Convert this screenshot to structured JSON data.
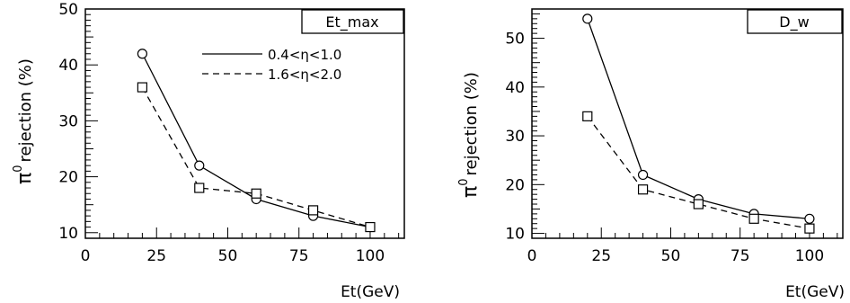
{
  "chart_data": [
    {
      "type": "line",
      "box_label": "Et_max",
      "xlabel": "Et(GeV)",
      "ylabel": "π⁰ rejection (%)",
      "ylabel_main": "rejection (%)",
      "xlim": [
        0,
        112
      ],
      "ylim": [
        9,
        50
      ],
      "xticks": [
        0,
        25,
        50,
        75,
        100
      ],
      "yticks": [
        10,
        20,
        30,
        40,
        50
      ],
      "legend": "top-right",
      "series": [
        {
          "name": "0.4<η<1.0",
          "style": "solid",
          "marker": "circle",
          "x": [
            20,
            40,
            60,
            80,
            100
          ],
          "y": [
            42,
            22,
            16,
            13,
            11
          ]
        },
        {
          "name": "1.6<η<2.0",
          "style": "dashed",
          "marker": "square",
          "x": [
            20,
            40,
            60,
            80,
            100
          ],
          "y": [
            36,
            18,
            17,
            14,
            11
          ]
        }
      ]
    },
    {
      "type": "line",
      "box_label": "D_w",
      "xlabel": "Et(GeV)",
      "ylabel": "π⁰ rejection (%)",
      "ylabel_main": "rejection (%)",
      "xlim": [
        0,
        112
      ],
      "ylim": [
        9,
        56
      ],
      "xticks": [
        0,
        25,
        50,
        75,
        100
      ],
      "yticks": [
        10,
        20,
        30,
        40,
        50
      ],
      "series": [
        {
          "style": "solid",
          "marker": "circle",
          "x": [
            20,
            40,
            60,
            80,
            100
          ],
          "y": [
            54,
            22,
            17,
            14,
            13
          ]
        },
        {
          "style": "dashed",
          "marker": "square",
          "x": [
            20,
            40,
            60,
            80,
            100
          ],
          "y": [
            34,
            19,
            16,
            13,
            11
          ]
        }
      ]
    }
  ]
}
